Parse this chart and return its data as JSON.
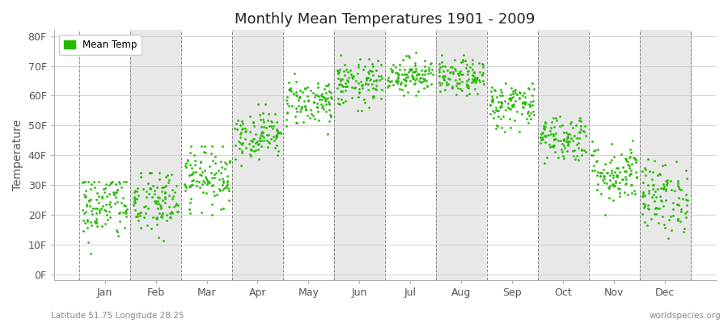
{
  "title": "Monthly Mean Temperatures 1901 - 2009",
  "ylabel": "Temperature",
  "subtitle_left": "Latitude 51.75 Longitude 28.25",
  "subtitle_right": "worldspecies.org",
  "legend_label": "Mean Temp",
  "dot_color": "#22bb00",
  "bg_white": "#ffffff",
  "bg_gray": "#e8e8e8",
  "months": [
    "Jan",
    "Feb",
    "Mar",
    "Apr",
    "May",
    "Jun",
    "Jul",
    "Aug",
    "Sep",
    "Oct",
    "Nov",
    "Dec"
  ],
  "month_means_F": [
    23,
    24,
    33,
    47,
    58,
    64,
    67,
    66,
    57,
    46,
    34,
    26
  ],
  "month_stds_F": [
    6,
    6,
    5,
    4,
    4,
    4,
    3,
    3,
    4,
    4,
    5,
    6
  ],
  "month_mins_F": [
    3,
    4,
    20,
    36,
    47,
    55,
    60,
    58,
    47,
    34,
    20,
    12
  ],
  "month_maxs_F": [
    31,
    34,
    43,
    57,
    68,
    74,
    76,
    74,
    66,
    56,
    45,
    40
  ],
  "yticks": [
    0,
    10,
    20,
    30,
    40,
    50,
    60,
    70,
    80
  ],
  "ytick_labels": [
    "0F",
    "10F",
    "20F",
    "30F",
    "40F",
    "50F",
    "60F",
    "70F",
    "80F"
  ],
  "ylim": [
    -2,
    82
  ],
  "xlim": [
    0,
    13
  ],
  "n_years": 109,
  "seed": 42
}
